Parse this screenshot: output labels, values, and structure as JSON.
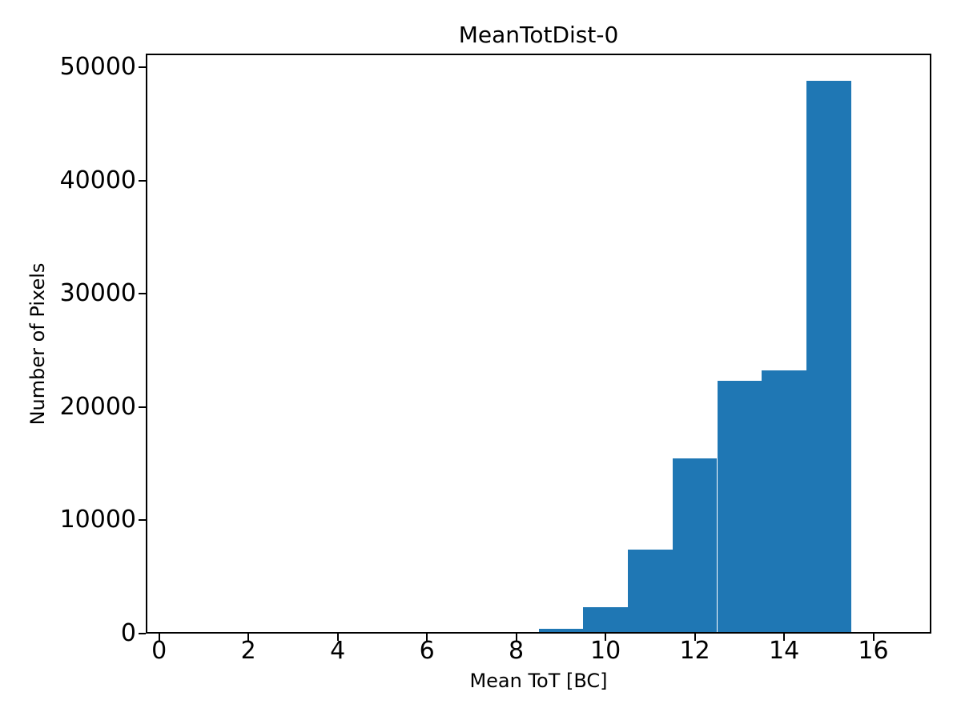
{
  "figure": {
    "background": "#ffffff",
    "text_color": "#000000"
  },
  "chart_data": {
    "type": "bar",
    "variant": "histogram",
    "title": "MeanTotDist-0",
    "xlabel": "Mean ToT [BC]",
    "ylabel": "Number of Pixels",
    "bin_edges": [
      0.5,
      1.5,
      2.5,
      3.5,
      4.5,
      5.5,
      6.5,
      7.5,
      8.5,
      9.5,
      10.5,
      11.5,
      12.5,
      13.5,
      14.5,
      15.5,
      16.5
    ],
    "values": [
      0,
      0,
      0,
      0,
      0,
      0,
      0,
      150,
      420,
      2330,
      7420,
      15470,
      22320,
      23240,
      48800,
      0
    ],
    "xlim": [
      -0.3,
      17.3
    ],
    "ylim": [
      0,
      51200
    ],
    "xticks": [
      0,
      2,
      4,
      6,
      8,
      10,
      12,
      14,
      16
    ],
    "yticks": [
      0,
      10000,
      20000,
      30000,
      40000,
      50000
    ],
    "bar_color": "#1f77b4",
    "axis_color": "#000000",
    "grid": false,
    "legend_position": "none"
  }
}
